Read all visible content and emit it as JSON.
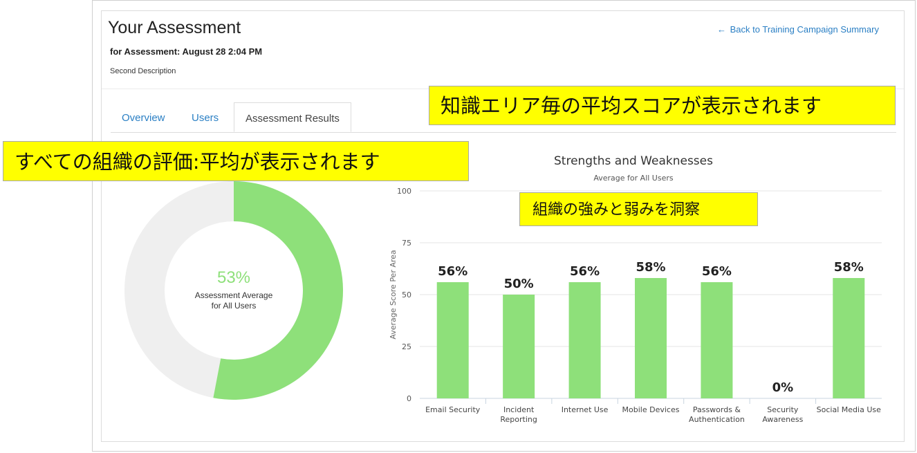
{
  "header": {
    "title": "Your Assessment",
    "subtitle": "for Assessment: August 28 2:04 PM",
    "description": "Second Description",
    "back_link_arrow": "←",
    "back_link": "Back to Training Campaign Summary"
  },
  "tabs": [
    {
      "label": "Overview",
      "active": false
    },
    {
      "label": "Users",
      "active": false
    },
    {
      "label": "Assessment Results",
      "active": true
    }
  ],
  "callouts": {
    "knowledge_area": "知識エリア毎の平均スコアが表示されます",
    "organization_average": "すべての組織の評価:平均が表示されます",
    "strengths_insight": "組織の強みと弱みを洞察"
  },
  "donut": {
    "value_label": "53%",
    "value": 53,
    "label_line1": "Assessment Average",
    "label_line2": "for All Users",
    "fill_color": "#8ee07a",
    "track_color": "#efefef"
  },
  "chart_data": {
    "type": "bar",
    "title": "Strengths and Weaknesses",
    "subtitle": "Average for All Users",
    "ylabel": "Average Score Per Area",
    "xlabel": "",
    "ylim": [
      0,
      100
    ],
    "yticks": [
      0,
      25,
      50,
      75,
      100
    ],
    "grid": true,
    "bar_color": "#8ee07a",
    "categories": [
      [
        "Email Security"
      ],
      [
        "Incident",
        "Reporting"
      ],
      [
        "Internet Use"
      ],
      [
        "Mobile Devices"
      ],
      [
        "Passwords &",
        "Authentication"
      ],
      [
        "Security",
        "Awareness"
      ],
      [
        "Social Media Use"
      ]
    ],
    "values": [
      56,
      50,
      56,
      58,
      56,
      0,
      58
    ],
    "data_labels": [
      "56%",
      "50%",
      "56%",
      "58%",
      "56%",
      "0%",
      "58%"
    ]
  }
}
